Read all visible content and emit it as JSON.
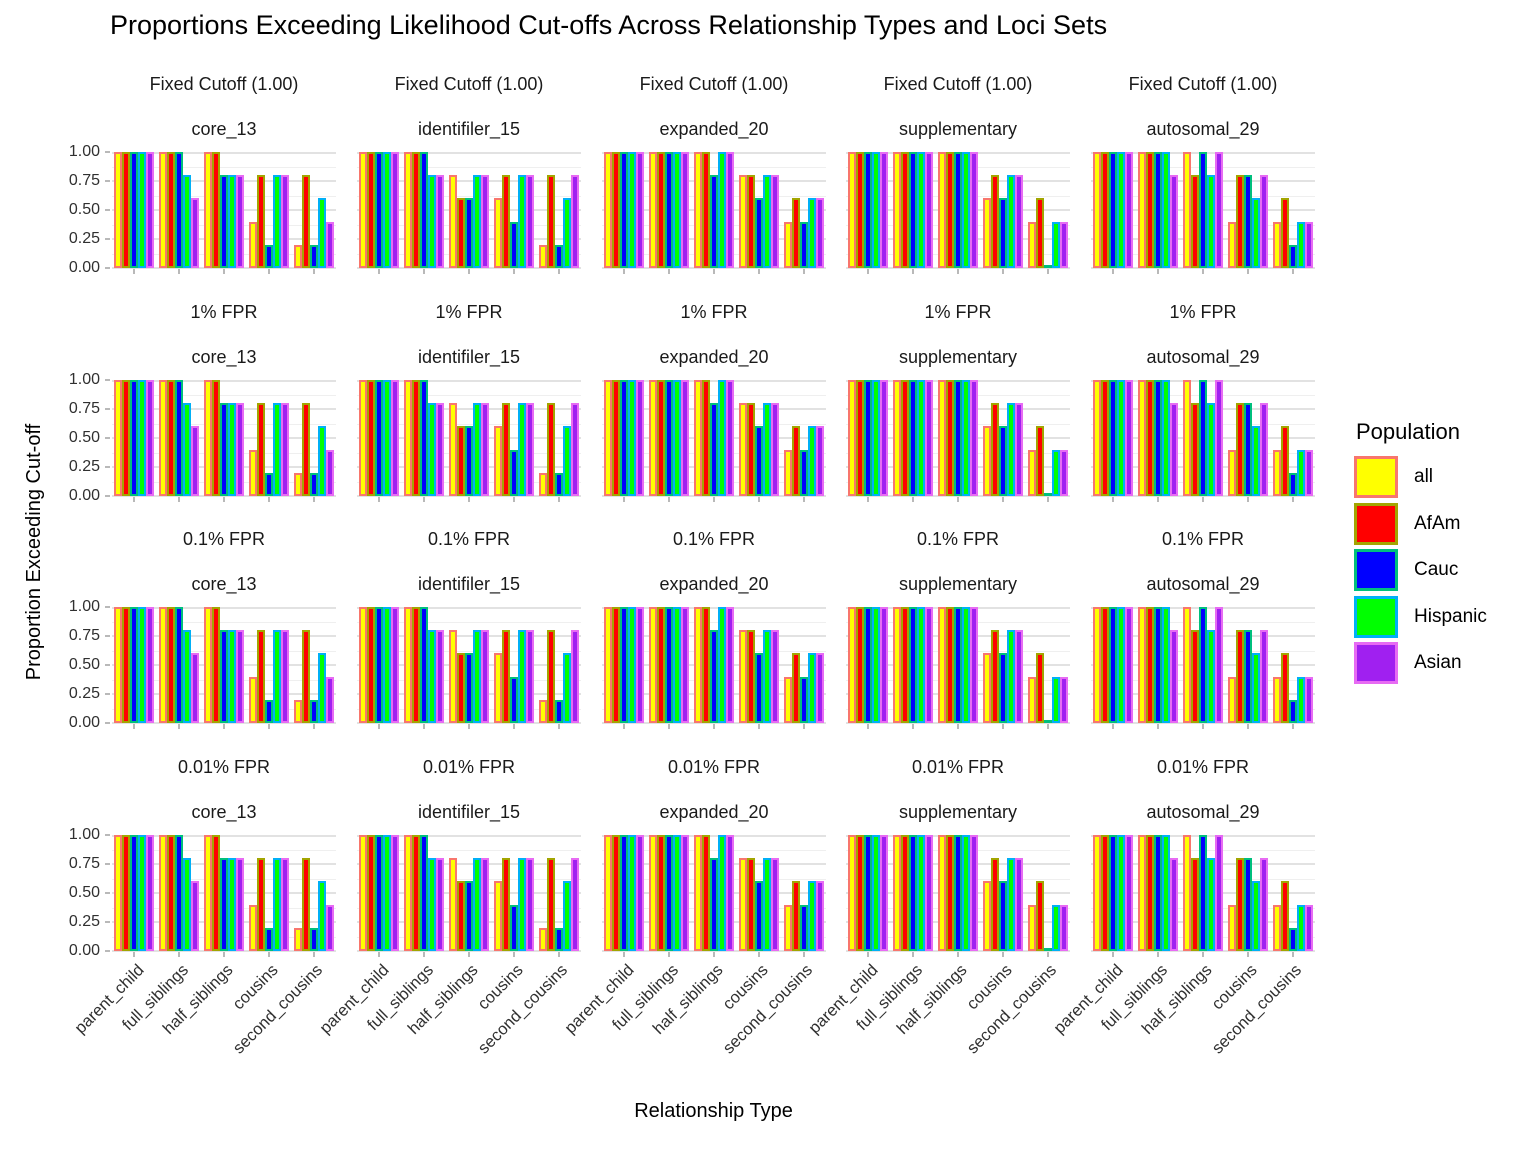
{
  "title": "Proportions Exceeding Likelihood Cut-offs Across Relationship Types and Loci Sets",
  "x_axis": {
    "title": "Relationship Type",
    "categories": [
      "parent_child",
      "full_siblings",
      "half_siblings",
      "cousins",
      "second_cousins"
    ]
  },
  "y_axis": {
    "title": "Proportion Exceeding Cut-off",
    "ticks": [
      "1.00",
      "0.75",
      "0.50",
      "0.25",
      "0.00"
    ]
  },
  "legend": {
    "title": "Population",
    "items": [
      {
        "label": "all",
        "fill": "#FFFF00",
        "border": "#F8766D"
      },
      {
        "label": "AfAm",
        "fill": "#FF0000",
        "border": "#A3A500"
      },
      {
        "label": "Cauc",
        "fill": "#0000FF",
        "border": "#00BF7D"
      },
      {
        "label": "Hispanic",
        "fill": "#00FF00",
        "border": "#00B0F6"
      },
      {
        "label": "Asian",
        "fill": "#A020F0",
        "border": "#E76BF3"
      }
    ]
  },
  "chart_data": {
    "type": "bar",
    "title": "Proportions Exceeding Likelihood Cut-offs Across Relationship Types and Loci Sets",
    "xlabel": "Relationship Type",
    "ylabel": "Proportion Exceeding Cut-off",
    "ylim": [
      0,
      1
    ],
    "y_major_ticks": [
      0,
      0.25,
      0.5,
      0.75,
      1.0
    ],
    "grid": "major every 0.25, minor every 0.125",
    "legend_position": "right",
    "facet_rows": [
      "Fixed Cutoff (1.00)",
      "1% FPR",
      "0.1% FPR",
      "0.01% FPR"
    ],
    "facet_cols": [
      "core_13",
      "identifiler_15",
      "expanded_20",
      "supplementary",
      "autosomal_29"
    ],
    "categories": [
      "parent_child",
      "full_siblings",
      "half_siblings",
      "cousins",
      "second_cousins"
    ],
    "series": [
      "all",
      "AfAm",
      "Cauc",
      "Hispanic",
      "Asian"
    ],
    "values_note": "values[loci_set][category_index][series_index]; identical across all four cutoff facet rows",
    "values": {
      "core_13": [
        [
          1.0,
          1.0,
          1.0,
          1.0,
          1.0
        ],
        [
          1.0,
          1.0,
          1.0,
          0.8,
          0.6
        ],
        [
          1.0,
          1.0,
          0.8,
          0.8,
          0.8
        ],
        [
          0.4,
          0.8,
          0.2,
          0.8,
          0.8
        ],
        [
          0.2,
          0.8,
          0.2,
          0.6,
          0.4
        ]
      ],
      "identifiler_15": [
        [
          1.0,
          1.0,
          1.0,
          1.0,
          1.0
        ],
        [
          1.0,
          1.0,
          1.0,
          0.8,
          0.8
        ],
        [
          0.8,
          0.6,
          0.6,
          0.8,
          0.8
        ],
        [
          0.6,
          0.8,
          0.4,
          0.8,
          0.8
        ],
        [
          0.2,
          0.8,
          0.2,
          0.6,
          0.8
        ]
      ],
      "expanded_20": [
        [
          1.0,
          1.0,
          1.0,
          1.0,
          1.0
        ],
        [
          1.0,
          1.0,
          1.0,
          1.0,
          1.0
        ],
        [
          1.0,
          1.0,
          0.8,
          1.0,
          1.0
        ],
        [
          0.8,
          0.8,
          0.6,
          0.8,
          0.8
        ],
        [
          0.4,
          0.6,
          0.4,
          0.6,
          0.6
        ]
      ],
      "supplementary": [
        [
          1.0,
          1.0,
          1.0,
          1.0,
          1.0
        ],
        [
          1.0,
          1.0,
          1.0,
          1.0,
          1.0
        ],
        [
          1.0,
          1.0,
          1.0,
          1.0,
          1.0
        ],
        [
          0.6,
          0.8,
          0.6,
          0.8,
          0.8
        ],
        [
          0.4,
          0.6,
          0.0,
          0.4,
          0.4
        ]
      ],
      "autosomal_29": [
        [
          1.0,
          1.0,
          1.0,
          1.0,
          1.0
        ],
        [
          1.0,
          1.0,
          1.0,
          1.0,
          0.8
        ],
        [
          1.0,
          0.8,
          1.0,
          0.8,
          1.0
        ],
        [
          0.4,
          0.8,
          0.8,
          0.6,
          0.8
        ],
        [
          0.4,
          0.6,
          0.2,
          0.4,
          0.4
        ]
      ]
    }
  }
}
